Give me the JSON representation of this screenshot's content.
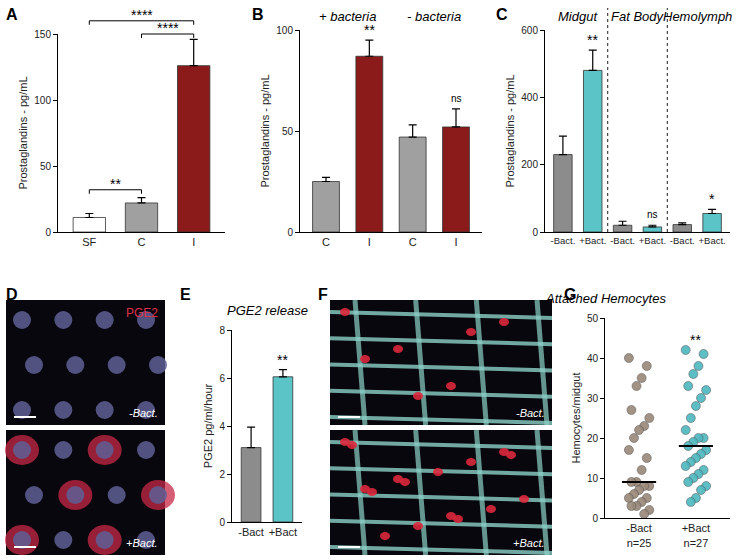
{
  "chart_data": [
    {
      "panel": "A",
      "type": "bar",
      "categories": [
        "SF",
        "C",
        "I"
      ],
      "values": [
        11,
        22,
        126
      ],
      "errors": [
        3,
        4,
        20
      ],
      "colors": [
        "#ffffff",
        "#a0a0a0",
        "#8b1a1a"
      ],
      "y_label": "Prostaglandins - pg/mL",
      "ylim": [
        0,
        150
      ],
      "yticks": [
        0,
        50,
        100,
        150
      ],
      "comparisons": [
        {
          "from": "SF",
          "to": "C",
          "label": "**",
          "y": 32
        },
        {
          "from": "SF",
          "to": "I",
          "label": "****",
          "y": 160
        },
        {
          "from": "C",
          "to": "I",
          "label": "****",
          "y": 150
        }
      ]
    },
    {
      "panel": "B",
      "type": "bar",
      "groups": [
        "+ bacteria",
        "- bacteria"
      ],
      "categories": [
        "C",
        "I",
        "C",
        "I"
      ],
      "values": [
        25,
        87,
        47,
        52
      ],
      "errors": [
        2,
        8,
        6,
        9
      ],
      "significance": [
        null,
        "**",
        null,
        "ns"
      ],
      "colors": [
        "#a0a0a0",
        "#8b1a1a",
        "#a0a0a0",
        "#8b1a1a"
      ],
      "y_label": "Prostaglandins - pg/mL",
      "ylim": [
        0,
        100
      ],
      "yticks": [
        0,
        50,
        100
      ]
    },
    {
      "panel": "C",
      "type": "bar",
      "groups": [
        "Midgut",
        "Fat Body",
        "Hemolymph"
      ],
      "categories": [
        "-Bact.",
        "+Bact.",
        "-Bact.",
        "+Bact.",
        "-Bact.",
        "+Bact."
      ],
      "values": [
        230,
        480,
        20,
        15,
        22,
        55
      ],
      "errors": [
        55,
        60,
        12,
        5,
        5,
        12
      ],
      "significance": [
        null,
        "**",
        null,
        "ns",
        null,
        "*"
      ],
      "colors": [
        "#8c8c8c",
        "#5bc4c6",
        "#8c8c8c",
        "#5bc4c6",
        "#8c8c8c",
        "#5bc4c6"
      ],
      "y_label": "Prostaglandins - pg/mL",
      "ylim": [
        0,
        600
      ],
      "yticks": [
        0,
        200,
        400,
        600
      ]
    },
    {
      "panel": "E",
      "type": "bar",
      "title": "PGE2 release",
      "categories": [
        "-Bact",
        "+Bact"
      ],
      "values": [
        3.1,
        6.05
      ],
      "errors": [
        0.85,
        0.3
      ],
      "significance": [
        null,
        "**"
      ],
      "colors": [
        "#8c8c8c",
        "#5bc4c6"
      ],
      "y_label": "PGE2 pg/ml/hour",
      "ylim": [
        0,
        8
      ],
      "yticks": [
        0,
        2,
        4,
        6,
        8
      ]
    },
    {
      "panel": "G",
      "type": "strip",
      "title": "Attached Hemocytes",
      "categories": [
        "-Bact",
        "+Bact"
      ],
      "n_labels": [
        "n=25",
        "n=27"
      ],
      "values": [
        [
          40,
          38,
          35,
          33,
          27,
          25,
          23,
          22,
          20,
          17,
          15,
          12,
          9,
          9,
          8,
          8,
          7,
          6,
          5,
          5,
          4,
          3,
          3,
          2,
          1
        ],
        [
          42,
          41,
          38,
          36,
          33,
          32,
          30,
          28,
          25,
          22,
          20,
          20,
          19,
          18,
          17,
          16,
          15,
          14,
          13,
          12,
          11,
          10,
          9,
          8,
          7,
          5,
          4
        ]
      ],
      "medians": [
        9,
        18
      ],
      "significance": [
        null,
        "**"
      ],
      "colors": [
        "#9a8878",
        "#4cb8c0"
      ],
      "y_label": "Hemocytes/midgut",
      "ylim": [
        0,
        50
      ],
      "yticks": [
        0,
        10,
        20,
        30,
        40,
        50
      ]
    }
  ],
  "images": [
    {
      "panel": "D",
      "stain": "PGE2",
      "conditions": [
        "-Bact.",
        "+Bact."
      ]
    },
    {
      "panel": "F",
      "conditions": [
        "-Bact.",
        "+Bact."
      ]
    }
  ]
}
